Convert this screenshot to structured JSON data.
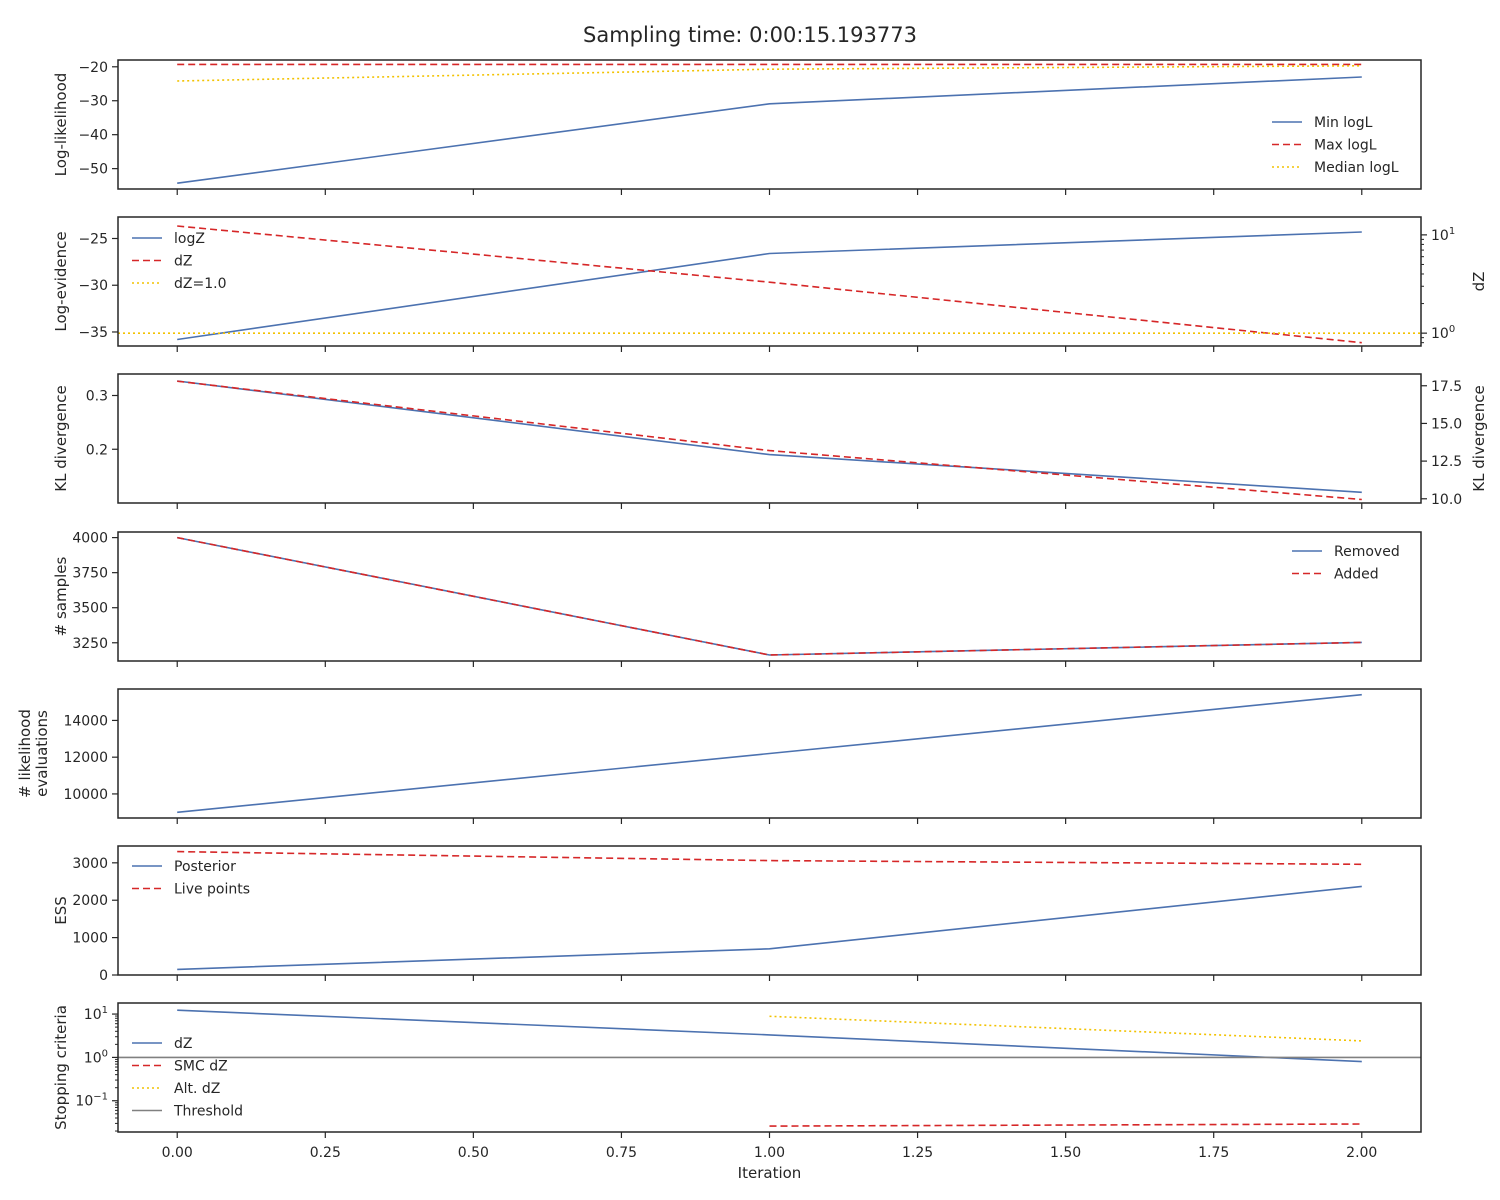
{
  "title": "Sampling time: 0:00:15.193773",
  "colors": {
    "blue": "#4c72b0",
    "red": "#d62728",
    "gold": "#f2c200",
    "gray": "#808080",
    "axes": "#262626"
  },
  "chart_data": [
    {
      "type": "line",
      "ylabel": "Log-likelihood",
      "xlim": [
        -0.1,
        2.1
      ],
      "ylim": [
        -56,
        -18
      ],
      "yticks": [
        -50,
        -40,
        -30,
        -20
      ],
      "ytick_labels": [
        "−50",
        "−40",
        "−30",
        "−20"
      ],
      "x": [
        0,
        1,
        2
      ],
      "series": [
        {
          "name": "Min logL",
          "values": [
            -54.3,
            -30.9,
            -23.0
          ],
          "color": "blue",
          "dash": "solid"
        },
        {
          "name": "Max logL",
          "values": [
            -19.3,
            -19.3,
            -19.3
          ],
          "color": "red",
          "dash": "dashed"
        },
        {
          "name": "Median logL",
          "values": [
            -24.2,
            -20.7,
            -19.7
          ],
          "color": "gold",
          "dash": "dotted"
        }
      ],
      "legend": "lower-right"
    },
    {
      "type": "line",
      "ylabel": "Log-evidence",
      "right_ylabel": "dZ",
      "xlim": [
        -0.1,
        2.1
      ],
      "ylim": [
        -36.5,
        -22.7
      ],
      "yticks": [
        -35,
        -30,
        -25
      ],
      "ytick_labels": [
        "−35",
        "−30",
        "−25"
      ],
      "right_scale": "log",
      "right_ylim": [
        0.74,
        15.2
      ],
      "right_yticks": [
        1,
        10
      ],
      "right_ytick_labels": [
        "10^0",
        "10^1"
      ],
      "x": [
        0,
        1,
        2
      ],
      "series": [
        {
          "name": "logZ",
          "values": [
            -35.8,
            -26.6,
            -24.3
          ],
          "color": "blue",
          "dash": "solid",
          "axis": "left"
        },
        {
          "name": "dZ",
          "values": [
            12.3,
            3.3,
            0.8
          ],
          "color": "red",
          "dash": "dashed",
          "axis": "right"
        },
        {
          "name": "dZ=1.0",
          "hline": 1.0,
          "color": "gold",
          "dash": "dotted",
          "axis": "right"
        }
      ],
      "legend": "upper-left"
    },
    {
      "type": "line",
      "ylabel": "KL divergence",
      "right_ylabel": "KL divergence",
      "xlim": [
        -0.1,
        2.1
      ],
      "ylim": [
        0.1,
        0.34
      ],
      "yticks": [
        0.2,
        0.3
      ],
      "ytick_labels": [
        "0.2",
        "0.3"
      ],
      "right_ylim": [
        9.72,
        18.28
      ],
      "right_yticks": [
        10,
        12.5,
        15,
        17.5
      ],
      "right_ytick_labels": [
        "10.0",
        "12.5",
        "15.0",
        "17.5"
      ],
      "x": [
        0,
        1,
        2
      ],
      "series": [
        {
          "name": "",
          "values": [
            0.327,
            0.19,
            0.12
          ],
          "color": "blue",
          "dash": "solid",
          "axis": "left"
        },
        {
          "name": "",
          "values": [
            17.8,
            13.2,
            9.95
          ],
          "color": "red",
          "dash": "dashed",
          "axis": "right"
        }
      ]
    },
    {
      "type": "line",
      "ylabel": "# samples",
      "xlim": [
        -0.1,
        2.1
      ],
      "ylim": [
        3120,
        4040
      ],
      "yticks": [
        3250,
        3500,
        3750,
        4000
      ],
      "ytick_labels": [
        "3250",
        "3500",
        "3750",
        "4000"
      ],
      "x": [
        0,
        1,
        2
      ],
      "series": [
        {
          "name": "Removed",
          "values": [
            4000,
            3163,
            3253
          ],
          "color": "blue",
          "dash": "solid"
        },
        {
          "name": "Added",
          "values": [
            4000,
            3163,
            3253
          ],
          "color": "red",
          "dash": "dashed"
        }
      ],
      "legend": "upper-right"
    },
    {
      "type": "line",
      "ylabel": "# likelihood\nevaluations",
      "xlim": [
        -0.1,
        2.1
      ],
      "ylim": [
        8690,
        15710
      ],
      "yticks": [
        10000,
        12000,
        14000
      ],
      "ytick_labels": [
        "10000",
        "12000",
        "14000"
      ],
      "x": [
        0,
        1,
        2
      ],
      "series": [
        {
          "name": "",
          "values": [
            9000,
            12200,
            15400
          ],
          "color": "blue",
          "dash": "solid"
        }
      ]
    },
    {
      "type": "line",
      "ylabel": "ESS",
      "xlim": [
        -0.1,
        2.1
      ],
      "ylim": [
        0,
        3450
      ],
      "yticks": [
        0,
        1000,
        2000,
        3000
      ],
      "ytick_labels": [
        "0",
        "1000",
        "2000",
        "3000"
      ],
      "x": [
        0,
        1,
        2
      ],
      "series": [
        {
          "name": "Posterior",
          "values": [
            150,
            700,
            2370
          ],
          "color": "blue",
          "dash": "solid"
        },
        {
          "name": "Live points",
          "values": [
            3300,
            3060,
            2960
          ],
          "color": "red",
          "dash": "dashed"
        }
      ],
      "legend": "upper-left"
    },
    {
      "type": "line",
      "ylabel": "Stopping criteria",
      "xlabel": "Iteration",
      "scale": "log",
      "xlim": [
        -0.1,
        2.1
      ],
      "ylim": [
        0.019,
        18
      ],
      "yticks": [
        0.1,
        1,
        10
      ],
      "ytick_labels": [
        "10^-1",
        "10^0",
        "10^1"
      ],
      "xticks": [
        0,
        0.25,
        0.5,
        0.75,
        1.0,
        1.25,
        1.5,
        1.75,
        2.0
      ],
      "xtick_labels": [
        "0.00",
        "0.25",
        "0.50",
        "0.75",
        "1.00",
        "1.25",
        "1.50",
        "1.75",
        "2.00"
      ],
      "x": [
        0,
        1,
        2
      ],
      "series": [
        {
          "name": "dZ",
          "values": [
            12.3,
            3.3,
            0.8
          ],
          "color": "blue",
          "dash": "solid"
        },
        {
          "name": "SMC dZ",
          "values": [
            null,
            0.026,
            0.029
          ],
          "color": "red",
          "dash": "dashed"
        },
        {
          "name": "Alt. dZ",
          "values": [
            null,
            8.9,
            2.4
          ],
          "color": "gold",
          "dash": "dotted"
        },
        {
          "name": "Threshold",
          "hline": 1.0,
          "color": "gray",
          "dash": "solid"
        }
      ],
      "legend": "center-left"
    }
  ]
}
